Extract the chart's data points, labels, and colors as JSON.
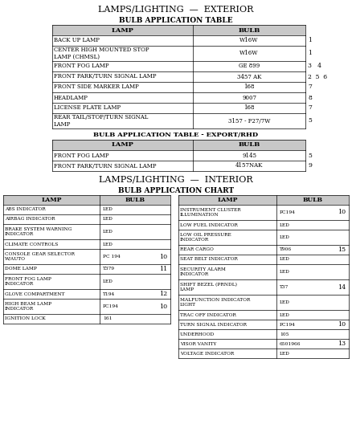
{
  "title1": "LAMPS/LIGHTING  —  EXTERIOR",
  "subtitle1": "BULB APPLICATION TABLE",
  "exterior_headers": [
    "LAMP",
    "BULB"
  ],
  "exterior_rows": [
    [
      "BACK UP LAMP",
      "W16W",
      "1"
    ],
    [
      "CENTER HIGH MOUNTED STOP\nLAMP (CHMSL)",
      "W16W",
      "1"
    ],
    [
      "FRONT FOG LAMP",
      "GE 899",
      "3   4"
    ],
    [
      "FRONT PARK/TURN SIGNAL LAMP",
      "3457 AK",
      "2  5  6"
    ],
    [
      "FRONT SIDE MARKER LAMP",
      "168",
      "7"
    ],
    [
      "HEADLAMP",
      "9007",
      "8"
    ],
    [
      "LICENSE PLATE LAMP",
      "168",
      "7"
    ],
    [
      "REAR TAIL/STOP/TURN SIGNAL\nLAMP",
      "3157 - P27/7W",
      "5"
    ]
  ],
  "subtitle2": "BULB APPLICATION TABLE - EXPORT/RHD",
  "export_headers": [
    "LAMP",
    "BULB"
  ],
  "export_rows": [
    [
      "FRONT FOG LAMP",
      "9145",
      "5"
    ],
    [
      "FRONT PARK/TURN SIGNAL LAMP",
      "4157NAK",
      "9"
    ]
  ],
  "title2": "LAMPS/LIGHTING  —  INTERIOR",
  "subtitle3": "BULB APPLICATION CHART",
  "interior_headers": [
    "LAMP",
    "BULB"
  ],
  "interior_left_rows": [
    [
      "ABS INDICATOR",
      "LED",
      ""
    ],
    [
      "AIRBAG INDICATOR",
      "LED",
      ""
    ],
    [
      "BRAKE SYSTEM WARNING\nINDICATOR",
      "LED",
      ""
    ],
    [
      "CLIMATE CONTROLS",
      "LED",
      ""
    ],
    [
      "CONSOLE GEAR SELECTOR\nW/AUTO",
      "PC 194",
      "10"
    ],
    [
      "DOME LAMP",
      "T379",
      "11"
    ],
    [
      "FRONT FOG LAMP\nINDICATOR",
      "LED",
      ""
    ],
    [
      "GLOVE COMPARTMENT",
      "T194",
      "12"
    ],
    [
      "HIGH BEAM LAMP\nINDICATOR",
      "PC194",
      "10"
    ],
    [
      "IGNITION LOCK",
      "161",
      ""
    ]
  ],
  "interior_right_rows": [
    [
      "INSTRUMENT CLUSTER\nILLUMINATION",
      "PC194",
      "10"
    ],
    [
      "LOW FUEL INDICATOR",
      "LED",
      ""
    ],
    [
      "LOW OIL PRESSURE\nINDICATOR",
      "LED",
      ""
    ],
    [
      "REAR CARGO",
      "T906",
      "15"
    ],
    [
      "SEAT BELT INDICATOR",
      "LED",
      ""
    ],
    [
      "SECURITY ALARM\nINDICATOR",
      "LED",
      ""
    ],
    [
      "SHIFT BEZEL (PRNDL)\nLAMP",
      "T37",
      "14"
    ],
    [
      "MALFUNCTION INDICATOR\nLIGHT",
      "LED",
      ""
    ],
    [
      "TRAC OFF INDICATOR",
      "LED",
      ""
    ],
    [
      "TURN SIGNAL INDICATOR",
      "PC194",
      "10"
    ],
    [
      "UNDERHOOD",
      "105",
      ""
    ],
    [
      "VISOR VANITY",
      "6501966",
      "13"
    ],
    [
      "VOLTAGE INDICATOR",
      "LED",
      ""
    ]
  ],
  "bg_color": "#ffffff",
  "header_bg": "#c8c8c8",
  "line_color": "#000000",
  "text_color": "#000000"
}
